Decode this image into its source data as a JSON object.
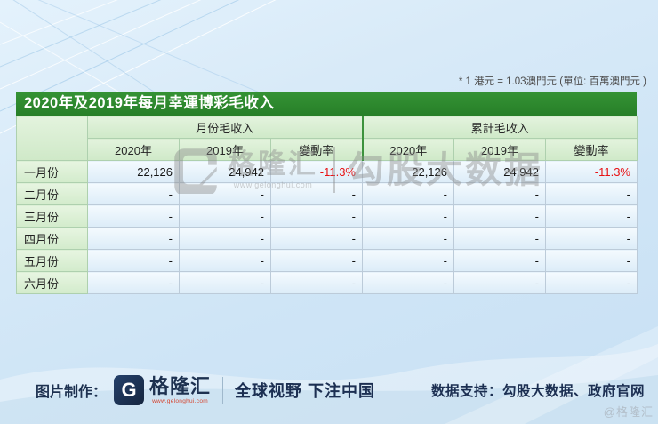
{
  "note": "* 1 港元 = 1.03澳門元 (單位: 百萬澳門元 )",
  "chart_data": {
    "type": "table",
    "title": "2020年及2019年每月幸運博彩毛收入",
    "group_headers": [
      "月份毛收入",
      "累計毛收入"
    ],
    "sub_headers": [
      "2020年",
      "2019年",
      "變動率",
      "2020年",
      "2019年",
      "變動率"
    ],
    "rows": [
      {
        "month": "一月份",
        "values": [
          "22,126",
          "24,942",
          "-11.3%",
          "22,126",
          "24,942",
          "-11.3%"
        ]
      },
      {
        "month": "二月份",
        "values": [
          "-",
          "-",
          "-",
          "-",
          "-",
          "-"
        ]
      },
      {
        "month": "三月份",
        "values": [
          "-",
          "-",
          "-",
          "-",
          "-",
          "-"
        ]
      },
      {
        "month": "四月份",
        "values": [
          "-",
          "-",
          "-",
          "-",
          "-",
          "-"
        ]
      },
      {
        "month": "五月份",
        "values": [
          "-",
          "-",
          "-",
          "-",
          "-",
          "-"
        ]
      },
      {
        "month": "六月份",
        "values": [
          "-",
          "-",
          "-",
          "-",
          "-",
          "-"
        ]
      }
    ]
  },
  "watermark": {
    "brand": "格隆汇",
    "url": "www.gelonghui.com",
    "suffix": "勾股大数据"
  },
  "footer": {
    "made_by": "图片制作：",
    "logo_letter": "G",
    "brand": "格隆汇",
    "brand_url": "www.gelonghui.com",
    "tagline": "全球视野 下注中国",
    "data_support": "数据支持：勾股大数据、政府官网"
  },
  "corner_watermark": "@格隆汇",
  "colors": {
    "title_green": "#2e8b2e",
    "header_green": "#d8eed2",
    "negative_red": "#e81113",
    "brand_navy": "#1d3150"
  }
}
